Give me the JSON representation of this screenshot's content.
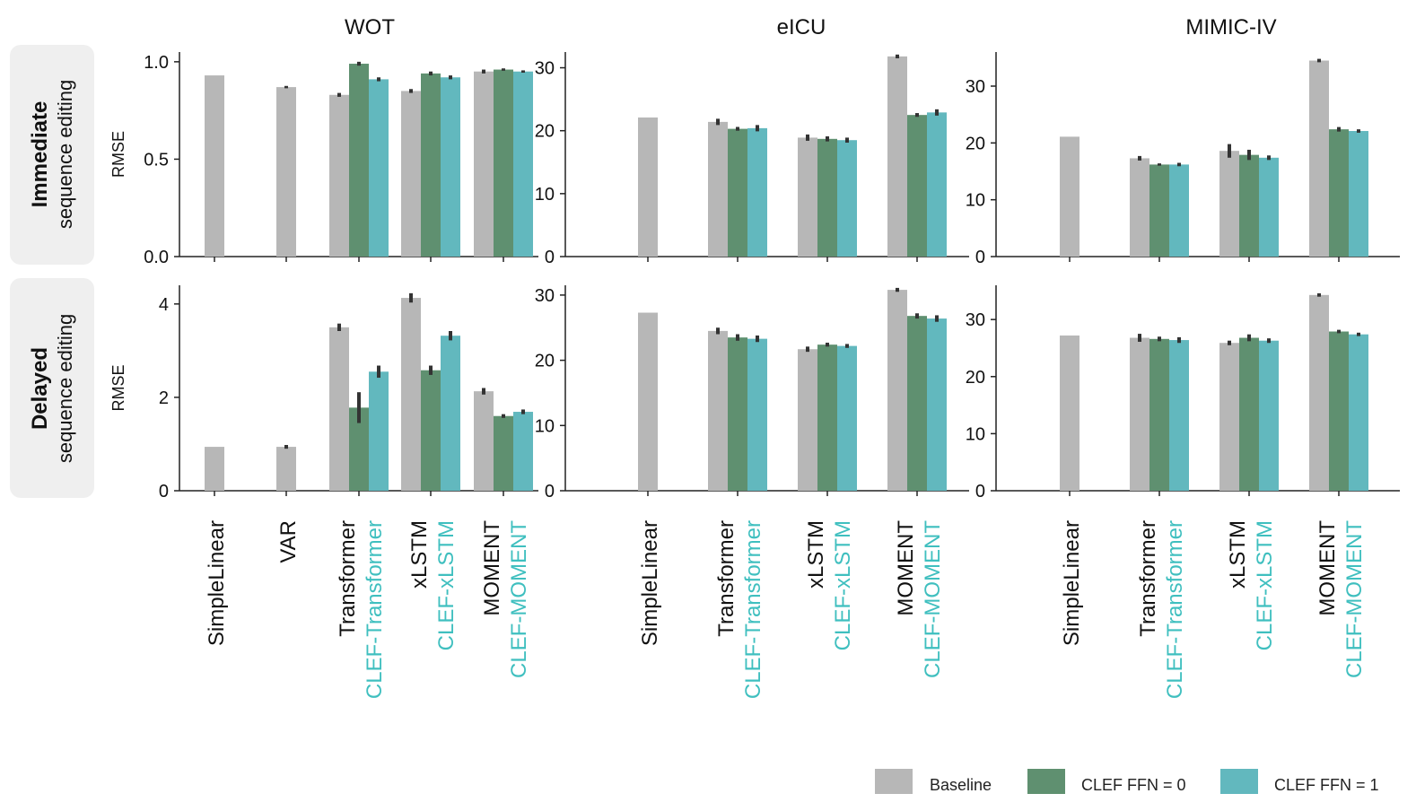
{
  "figure": {
    "columns": [
      "WOT",
      "eICU",
      "MIMIC-IV"
    ],
    "rows": [
      {
        "bold": "Immediate",
        "rest": "sequence editing"
      },
      {
        "bold": "Delayed",
        "rest": "sequence editing"
      }
    ],
    "ylabel": "RMSE"
  },
  "legend": {
    "items": [
      {
        "label": "Baseline",
        "color": "#b7b7b7"
      },
      {
        "label": "CLEF FFN = 0",
        "color": "#5f9070"
      },
      {
        "label": "CLEF FFN = 1",
        "color": "#62b8be"
      }
    ]
  },
  "colors": {
    "baseline": "#b7b7b7",
    "ffn0": "#5f9070",
    "ffn1": "#62b8be",
    "clef_text": "#3fbfbf"
  },
  "chart_data": [
    {
      "type": "bar",
      "column": "WOT",
      "row": "Immediate sequence editing",
      "ylabel": "RMSE",
      "ylim": [
        0,
        1.05
      ],
      "yticks": [
        0.0,
        0.5,
        1.0
      ],
      "ytick_labels": [
        "0.0",
        "0.5",
        "1.0"
      ],
      "groups": [
        {
          "baseline": 0.93,
          "ffn0": null,
          "ffn1": null
        },
        {
          "baseline": 0.87,
          "ffn0": null,
          "ffn1": null
        },
        {
          "baseline": 0.83,
          "ffn0": 0.99,
          "ffn1": 0.91
        },
        {
          "baseline": 0.85,
          "ffn0": 0.94,
          "ffn1": 0.92
        },
        {
          "baseline": 0.95,
          "ffn0": 0.96,
          "ffn1": 0.95
        }
      ],
      "errors": [
        {
          "baseline": 0,
          "ffn0": 0,
          "ffn1": 0
        },
        {
          "baseline": 0.006,
          "ffn0": 0,
          "ffn1": 0
        },
        {
          "baseline": 0.01,
          "ffn0": 0.01,
          "ffn1": 0.01
        },
        {
          "baseline": 0.01,
          "ffn0": 0.01,
          "ffn1": 0.01
        },
        {
          "baseline": 0.01,
          "ffn0": 0.006,
          "ffn1": 0.006
        }
      ]
    },
    {
      "type": "bar",
      "column": "eICU",
      "row": "Immediate sequence editing",
      "ylabel": "",
      "ylim": [
        0,
        32.5
      ],
      "yticks": [
        0,
        10,
        20,
        30
      ],
      "ytick_labels": [
        "0",
        "10",
        "20",
        "30"
      ],
      "groups": [
        {
          "baseline": 22.1,
          "ffn0": null,
          "ffn1": null
        },
        {
          "baseline": 21.4,
          "ffn0": 20.3,
          "ffn1": 20.4
        },
        {
          "baseline": 18.9,
          "ffn0": 18.7,
          "ffn1": 18.5
        },
        {
          "baseline": 31.8,
          "ffn0": 22.5,
          "ffn1": 22.9
        }
      ],
      "errors": [
        {
          "baseline": 0,
          "ffn0": 0,
          "ffn1": 0
        },
        {
          "baseline": 0.5,
          "ffn0": 0.3,
          "ffn1": 0.5
        },
        {
          "baseline": 0.5,
          "ffn0": 0.4,
          "ffn1": 0.4
        },
        {
          "baseline": 0.3,
          "ffn0": 0.3,
          "ffn1": 0.5
        }
      ]
    },
    {
      "type": "bar",
      "column": "MIMIC-IV",
      "row": "Immediate sequence editing",
      "ylabel": "",
      "ylim": [
        0,
        36
      ],
      "yticks": [
        0,
        10,
        20,
        30
      ],
      "ytick_labels": [
        "0",
        "10",
        "20",
        "30"
      ],
      "groups": [
        {
          "baseline": 21.1,
          "ffn0": null,
          "ffn1": null
        },
        {
          "baseline": 17.3,
          "ffn0": 16.2,
          "ffn1": 16.2
        },
        {
          "baseline": 18.6,
          "ffn0": 17.9,
          "ffn1": 17.4
        },
        {
          "baseline": 34.5,
          "ffn0": 22.4,
          "ffn1": 22.1
        }
      ],
      "errors": [
        {
          "baseline": 0,
          "ffn0": 0,
          "ffn1": 0
        },
        {
          "baseline": 0.4,
          "ffn0": 0.2,
          "ffn1": 0.3
        },
        {
          "baseline": 1.2,
          "ffn0": 0.9,
          "ffn1": 0.4
        },
        {
          "baseline": 0.3,
          "ffn0": 0.4,
          "ffn1": 0.3
        }
      ]
    },
    {
      "type": "bar",
      "column": "WOT",
      "row": "Delayed sequence editing",
      "ylabel": "RMSE",
      "ylim": [
        0,
        4.4
      ],
      "yticks": [
        0,
        2,
        4
      ],
      "ytick_labels": [
        "0",
        "2",
        "4"
      ],
      "groups": [
        {
          "baseline": 0.94,
          "ffn0": null,
          "ffn1": null
        },
        {
          "baseline": 0.94,
          "ffn0": null,
          "ffn1": null
        },
        {
          "baseline": 3.5,
          "ffn0": 1.78,
          "ffn1": 2.55
        },
        {
          "baseline": 4.13,
          "ffn0": 2.58,
          "ffn1": 3.32
        },
        {
          "baseline": 2.13,
          "ffn0": 1.6,
          "ffn1": 1.69
        }
      ],
      "errors": [
        {
          "baseline": 0,
          "ffn0": 0,
          "ffn1": 0
        },
        {
          "baseline": 0.04,
          "ffn0": 0,
          "ffn1": 0
        },
        {
          "baseline": 0.08,
          "ffn0": 0.33,
          "ffn1": 0.13
        },
        {
          "baseline": 0.1,
          "ffn0": 0.1,
          "ffn1": 0.1
        },
        {
          "baseline": 0.07,
          "ffn0": 0.04,
          "ffn1": 0.05
        }
      ]
    },
    {
      "type": "bar",
      "column": "eICU",
      "row": "Delayed sequence editing",
      "ylabel": "",
      "ylim": [
        0,
        31.5
      ],
      "yticks": [
        0,
        10,
        20,
        30
      ],
      "ytick_labels": [
        "0",
        "10",
        "20",
        "30"
      ],
      "groups": [
        {
          "baseline": 27.3,
          "ffn0": null,
          "ffn1": null
        },
        {
          "baseline": 24.5,
          "ffn0": 23.5,
          "ffn1": 23.3
        },
        {
          "baseline": 21.7,
          "ffn0": 22.4,
          "ffn1": 22.2
        },
        {
          "baseline": 30.8,
          "ffn0": 26.8,
          "ffn1": 26.4
        }
      ],
      "errors": [
        {
          "baseline": 0,
          "ffn0": 0,
          "ffn1": 0
        },
        {
          "baseline": 0.5,
          "ffn0": 0.5,
          "ffn1": 0.5
        },
        {
          "baseline": 0.4,
          "ffn0": 0.3,
          "ffn1": 0.3
        },
        {
          "baseline": 0.3,
          "ffn0": 0.4,
          "ffn1": 0.5
        }
      ]
    },
    {
      "type": "bar",
      "column": "MIMIC-IV",
      "row": "Delayed sequence editing",
      "ylabel": "",
      "ylim": [
        0,
        36
      ],
      "yticks": [
        0,
        10,
        20,
        30
      ],
      "ytick_labels": [
        "0",
        "10",
        "20",
        "30"
      ],
      "groups": [
        {
          "baseline": 27.2,
          "ffn0": null,
          "ffn1": null
        },
        {
          "baseline": 26.8,
          "ffn0": 26.6,
          "ffn1": 26.4
        },
        {
          "baseline": 25.9,
          "ffn0": 26.8,
          "ffn1": 26.3
        },
        {
          "baseline": 34.3,
          "ffn0": 27.9,
          "ffn1": 27.4
        }
      ],
      "errors": [
        {
          "baseline": 0,
          "ffn0": 0,
          "ffn1": 0
        },
        {
          "baseline": 0.7,
          "ffn0": 0.4,
          "ffn1": 0.5
        },
        {
          "baseline": 0.4,
          "ffn0": 0.6,
          "ffn1": 0.4
        },
        {
          "baseline": 0.3,
          "ffn0": 0.3,
          "ffn1": 0.3
        }
      ]
    }
  ],
  "categories": [
    {
      "column": "WOT",
      "groups": [
        {
          "baseline": "SimpleLinear",
          "clef": ""
        },
        {
          "baseline": "VAR",
          "clef": ""
        },
        {
          "baseline": "Transformer",
          "clef": "CLEF-Transformer"
        },
        {
          "baseline": "xLSTM",
          "clef": "CLEF-xLSTM"
        },
        {
          "baseline": "MOMENT",
          "clef": "CLEF-MOMENT"
        }
      ]
    },
    {
      "column": "eICU",
      "groups": [
        {
          "baseline": "SimpleLinear",
          "clef": ""
        },
        {
          "baseline": "Transformer",
          "clef": "CLEF-Transformer"
        },
        {
          "baseline": "xLSTM",
          "clef": "CLEF-xLSTM"
        },
        {
          "baseline": "MOMENT",
          "clef": "CLEF-MOMENT"
        }
      ]
    },
    {
      "column": "MIMIC-IV",
      "groups": [
        {
          "baseline": "SimpleLinear",
          "clef": ""
        },
        {
          "baseline": "Transformer",
          "clef": "CLEF-Transformer"
        },
        {
          "baseline": "xLSTM",
          "clef": "CLEF-xLSTM"
        },
        {
          "baseline": "MOMENT",
          "clef": "CLEF-MOMENT"
        }
      ]
    }
  ]
}
